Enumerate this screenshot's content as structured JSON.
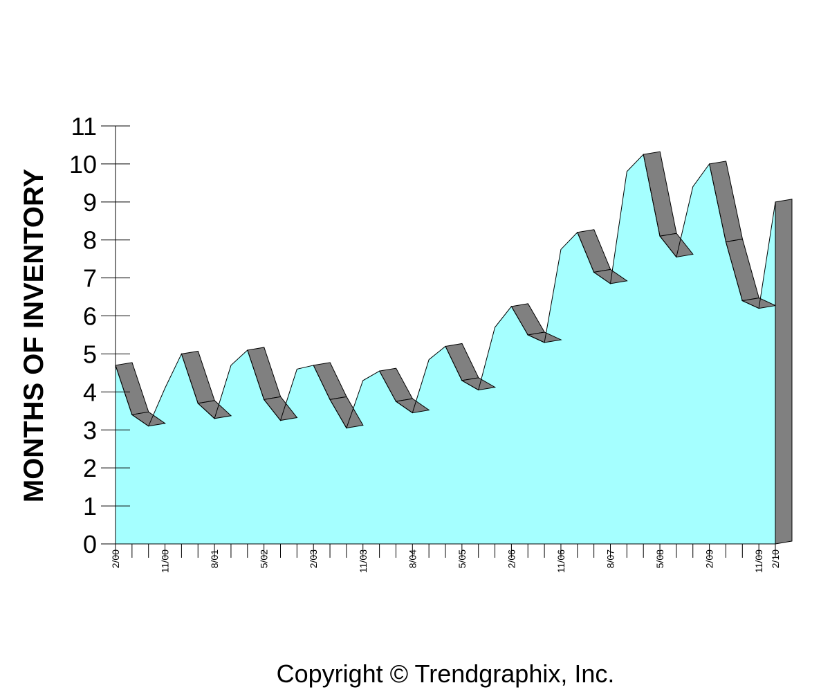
{
  "chart_data": {
    "type": "area",
    "title": "",
    "xlabel": "",
    "ylabel": "MONTHS OF INVENTORY",
    "ylim": [
      0,
      11
    ],
    "yticks": [
      "0",
      "1",
      "2",
      "3",
      "4",
      "5",
      "6",
      "7",
      "8",
      "9",
      "10",
      "11"
    ],
    "x_tick_labels": [
      "2/00",
      "11/00",
      "8/01",
      "5/02",
      "2/03",
      "11/03",
      "8/04",
      "5/05",
      "2/06",
      "11/06",
      "8/07",
      "5/08",
      "2/09",
      "11/09",
      "2/10"
    ],
    "x": [
      "2/00",
      "5/00",
      "8/00",
      "11/00",
      "2/01",
      "5/01",
      "8/01",
      "11/01",
      "2/02",
      "5/02",
      "8/02",
      "11/02",
      "2/03",
      "5/03",
      "8/03",
      "11/03",
      "2/04",
      "5/04",
      "8/04",
      "11/04",
      "2/05",
      "5/05",
      "8/05",
      "11/05",
      "2/06",
      "5/06",
      "8/06",
      "11/06",
      "2/07",
      "5/07",
      "8/07",
      "11/07",
      "2/08",
      "5/08",
      "8/08",
      "11/08",
      "2/09",
      "5/09",
      "8/09",
      "11/09",
      "2/10"
    ],
    "values": [
      4.7,
      3.4,
      3.1,
      4.1,
      5.0,
      3.7,
      3.3,
      4.7,
      5.1,
      3.8,
      3.25,
      4.6,
      4.7,
      3.8,
      3.05,
      4.3,
      4.55,
      3.75,
      3.45,
      4.85,
      5.2,
      4.3,
      4.05,
      5.7,
      6.25,
      5.5,
      5.3,
      7.75,
      8.2,
      7.15,
      6.85,
      9.8,
      10.25,
      8.1,
      7.55,
      9.4,
      10.0,
      7.95,
      6.4,
      6.2,
      9.0
    ],
    "grid": false,
    "legend": "none",
    "colors": {
      "area_fill": "#a5ffff",
      "ribbon_face": "#808080",
      "outline": "#000000",
      "background": "#ffffff"
    }
  },
  "footer": {
    "copyright": "Copyright © Trendgraphix, Inc."
  }
}
